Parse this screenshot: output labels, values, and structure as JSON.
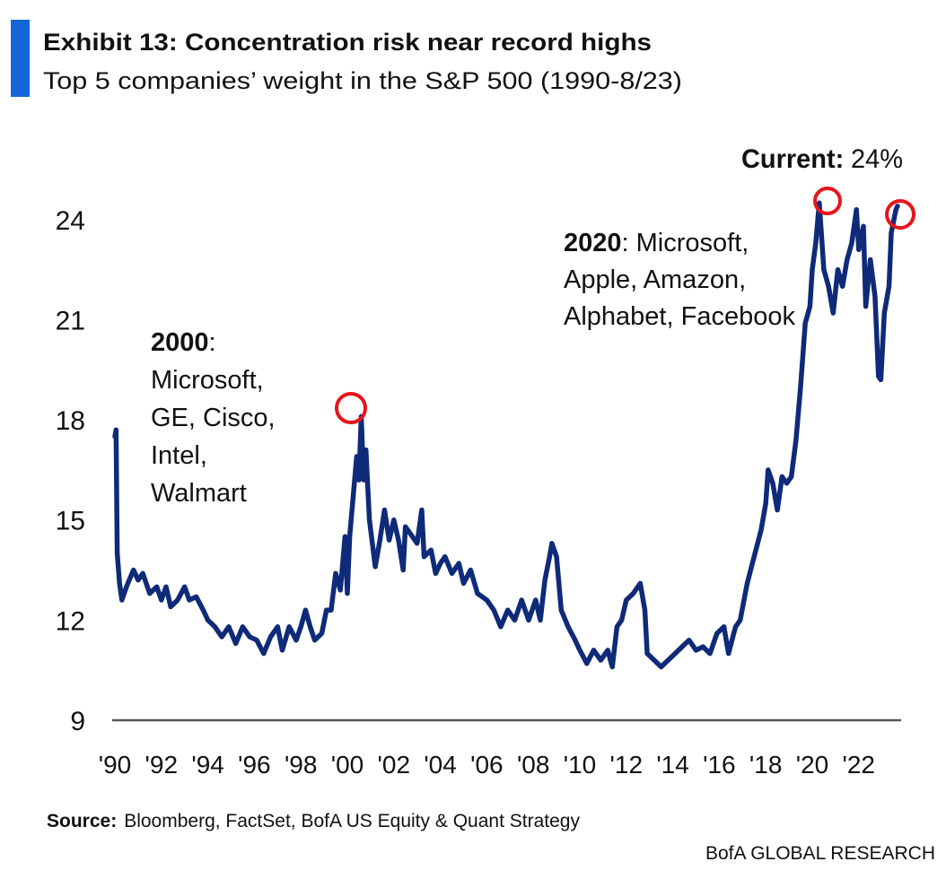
{
  "chart_data": {
    "type": "line",
    "title": "Exhibit 13: Concentration risk near record highs",
    "subtitle": "Top 5 companies’ weight in the S&P 500 (1990-8/23)",
    "color": "#0f2a78",
    "annotations": [
      {
        "bold": "Current:",
        "rest": "24%",
        "lines": []
      },
      {
        "bold": "2000",
        "rest": ":",
        "lines": [
          "Microsoft,",
          "GE, Cisco,",
          "Intel,",
          "Walmart"
        ]
      },
      {
        "bold": "2020",
        "rest": ": Microsoft,",
        "lines": [
          "Apple, Amazon,",
          "Alphabet, Facebook"
        ]
      }
    ],
    "source": {
      "label": "Source:",
      "text": "Bloomberg, FactSet, BofA US Equity & Quant Strategy"
    },
    "footer": "BofA GLOBAL RESEARCH",
    "xlim": [
      1990,
      2023.8
    ],
    "xticks": [
      {
        "value": 1990,
        "label": "'90"
      },
      {
        "value": 1992,
        "label": "'92"
      },
      {
        "value": 1994,
        "label": "'94"
      },
      {
        "value": 1996,
        "label": "'96"
      },
      {
        "value": 1998,
        "label": "'98"
      },
      {
        "value": 2000,
        "label": "'00"
      },
      {
        "value": 2002,
        "label": "'02"
      },
      {
        "value": 2004,
        "label": "'04"
      },
      {
        "value": 2006,
        "label": "'06"
      },
      {
        "value": 2008,
        "label": "'08"
      },
      {
        "value": 2010,
        "label": "'10"
      },
      {
        "value": 2012,
        "label": "'12"
      },
      {
        "value": 2014,
        "label": "'14"
      },
      {
        "value": 2016,
        "label": "'16"
      },
      {
        "value": 2018,
        "label": "'18"
      },
      {
        "value": 2020,
        "label": "'20"
      },
      {
        "value": 2022,
        "label": "'22"
      }
    ],
    "ylim": [
      9,
      25.5
    ],
    "yticks": [
      9,
      12,
      15,
      18,
      21,
      24
    ],
    "x": [
      1990.0,
      1990.05,
      1990.1,
      1990.2,
      1990.3,
      1990.5,
      1990.8,
      1991.0,
      1991.2,
      1991.5,
      1991.8,
      1992.0,
      1992.2,
      1992.4,
      1992.7,
      1993.0,
      1993.2,
      1993.5,
      1993.8,
      1994.0,
      1994.3,
      1994.6,
      1994.9,
      1995.2,
      1995.5,
      1995.8,
      1996.1,
      1996.4,
      1996.7,
      1997.0,
      1997.2,
      1997.5,
      1997.8,
      1998.0,
      1998.2,
      1998.4,
      1998.6,
      1998.9,
      1999.1,
      1999.3,
      1999.5,
      1999.7,
      1999.9,
      2000.0,
      2000.1,
      2000.4,
      2000.5,
      2000.6,
      2000.7,
      2000.8,
      2000.95,
      2001.2,
      2001.4,
      2001.6,
      2001.8,
      2002.0,
      2002.2,
      2002.4,
      2002.5,
      2002.8,
      2003.0,
      2003.2,
      2003.3,
      2003.6,
      2003.8,
      2004.0,
      2004.2,
      2004.5,
      2004.8,
      2005.0,
      2005.3,
      2005.6,
      2006.0,
      2006.3,
      2006.6,
      2006.9,
      2007.2,
      2007.5,
      2007.8,
      2008.1,
      2008.3,
      2008.5,
      2008.7,
      2008.8,
      2009.0,
      2009.2,
      2009.5,
      2009.8,
      2010.0,
      2010.3,
      2010.6,
      2010.9,
      2011.2,
      2011.4,
      2011.6,
      2011.8,
      2012.0,
      2012.3,
      2012.6,
      2012.8,
      2012.9,
      2013.2,
      2013.5,
      2013.8,
      2014.1,
      2014.4,
      2014.7,
      2015.0,
      2015.3,
      2015.6,
      2015.9,
      2016.2,
      2016.4,
      2016.7,
      2016.9,
      2017.2,
      2017.5,
      2017.8,
      2018.0,
      2018.1,
      2018.3,
      2018.5,
      2018.7,
      2018.9,
      2019.1,
      2019.3,
      2019.5,
      2019.7,
      2019.9,
      2020.0,
      2020.15,
      2020.3,
      2020.5,
      2020.7,
      2020.9,
      2021.1,
      2021.3,
      2021.5,
      2021.7,
      2021.9,
      2022.0,
      2022.2,
      2022.3,
      2022.5,
      2022.7,
      2022.85,
      2022.95,
      2023.1,
      2023.3,
      2023.4,
      2023.6,
      2023.67
    ],
    "values": [
      17.5,
      17.7,
      14.0,
      13.1,
      12.6,
      13.0,
      13.5,
      13.2,
      13.4,
      12.8,
      13.0,
      12.6,
      13.0,
      12.4,
      12.6,
      13.0,
      12.6,
      12.7,
      12.3,
      12.0,
      11.8,
      11.5,
      11.8,
      11.3,
      11.8,
      11.5,
      11.4,
      11.0,
      11.5,
      11.8,
      11.1,
      11.8,
      11.4,
      11.8,
      12.3,
      11.8,
      11.4,
      11.6,
      12.3,
      12.3,
      13.4,
      12.9,
      14.5,
      12.8,
      14.5,
      16.9,
      16.2,
      18.1,
      16.2,
      17.1,
      15.0,
      13.6,
      14.4,
      15.3,
      14.4,
      15.0,
      14.4,
      13.5,
      14.8,
      14.5,
      14.3,
      15.3,
      13.9,
      14.1,
      13.4,
      13.7,
      13.9,
      13.4,
      13.7,
      13.1,
      13.5,
      12.8,
      12.6,
      12.3,
      11.8,
      12.3,
      12.0,
      12.6,
      12.0,
      12.6,
      12.0,
      13.2,
      13.9,
      14.3,
      13.9,
      12.3,
      11.8,
      11.4,
      11.1,
      10.7,
      11.1,
      10.8,
      11.1,
      10.6,
      11.8,
      12.0,
      12.6,
      12.8,
      13.1,
      12.3,
      11.0,
      10.8,
      10.6,
      10.8,
      11.0,
      11.2,
      11.4,
      11.1,
      11.2,
      11.0,
      11.6,
      11.8,
      11.0,
      11.8,
      12.0,
      13.1,
      13.9,
      14.7,
      15.5,
      16.5,
      16.1,
      15.3,
      16.3,
      16.1,
      16.3,
      17.4,
      19.0,
      20.9,
      21.4,
      22.5,
      23.3,
      24.5,
      22.5,
      22.0,
      21.2,
      22.5,
      22.0,
      22.8,
      23.3,
      24.3,
      23.1,
      23.8,
      21.4,
      22.8,
      21.7,
      19.3,
      19.2,
      21.2,
      22.0,
      23.6,
      24.3,
      24.4
    ]
  }
}
